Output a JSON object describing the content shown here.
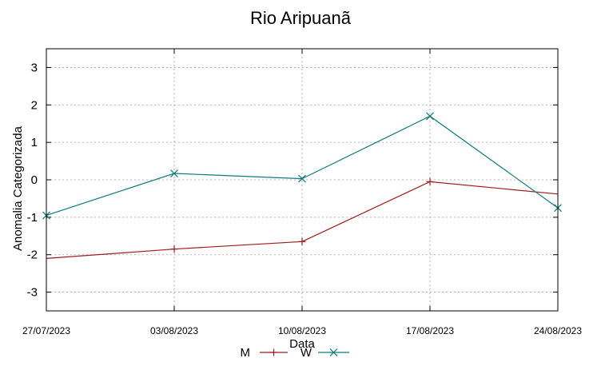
{
  "chart_data": {
    "type": "line",
    "title": "Rio Aripuanã",
    "xlabel": "Data",
    "ylabel": "Anomalia Categorizada",
    "categories": [
      "27/07/2023",
      "03/08/2023",
      "10/08/2023",
      "17/08/2023",
      "24/08/2023"
    ],
    "ylim": [
      -3.5,
      3.5
    ],
    "yticks": [
      -3,
      -2,
      -1,
      0,
      1,
      2,
      3
    ],
    "grid": true,
    "legend_position": "bottom",
    "series": [
      {
        "name": "M",
        "values": [
          -2.1,
          -1.85,
          -1.65,
          -0.05,
          -0.38
        ],
        "color": "#a01c1c",
        "marker": "+"
      },
      {
        "name": "W",
        "values": [
          -0.95,
          0.17,
          0.03,
          1.7,
          -0.75
        ],
        "color": "#0f7b7b",
        "marker": "x"
      }
    ]
  }
}
